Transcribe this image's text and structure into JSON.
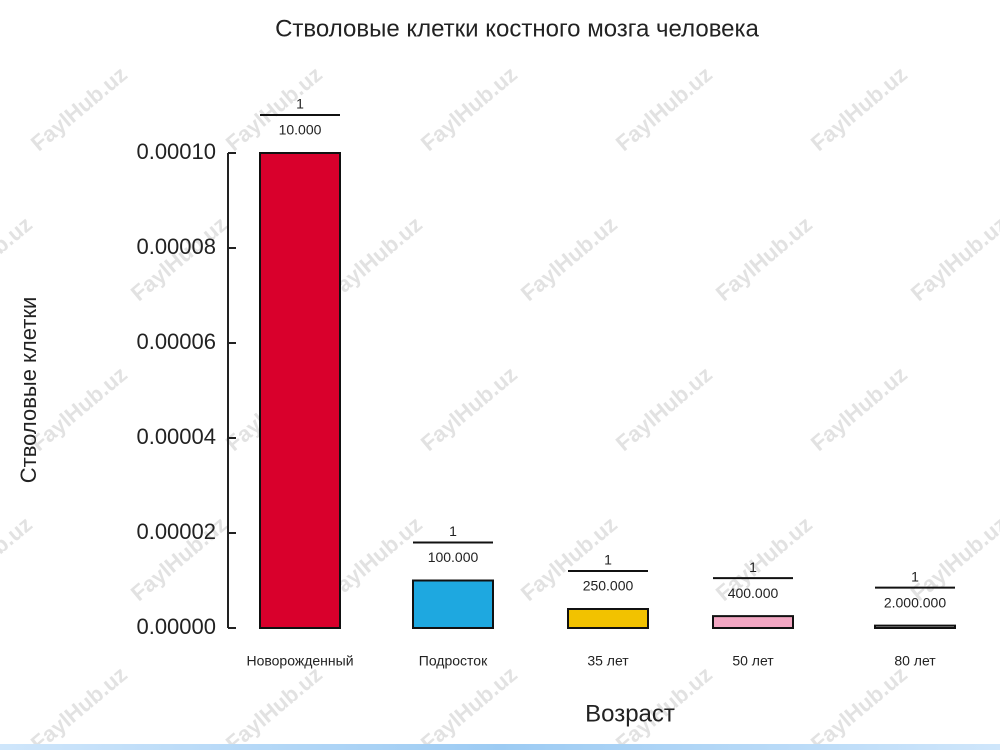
{
  "chart_data": {
    "type": "bar",
    "title": "Стволовые клетки костного мозга человека",
    "xlabel": "Возраст",
    "ylabel": "Стволовые клетки",
    "watermark": "FaylHub.uz",
    "categories": [
      "Новорожденный",
      "Подросток",
      "35 лет",
      "50 лет",
      "80 лет"
    ],
    "values": [
      0.0001,
      1e-05,
      4e-06,
      2.5e-06,
      5e-07
    ],
    "value_labels": [
      {
        "numerator": "1",
        "denominator": "10.000"
      },
      {
        "numerator": "1",
        "denominator": "100.000"
      },
      {
        "numerator": "1",
        "denominator": "250.000"
      },
      {
        "numerator": "1",
        "denominator": "400.000"
      },
      {
        "numerator": "1",
        "denominator": "2.000.000"
      }
    ],
    "colors": [
      "#d9002c",
      "#1ea8e0",
      "#f2c200",
      "#f3a7c3",
      "#e6e6e6"
    ],
    "ylim": [
      0,
      0.0001
    ],
    "yticks": [
      {
        "value": 0,
        "label": "0.00000"
      },
      {
        "value": 2e-05,
        "label": "0.00002"
      },
      {
        "value": 4e-05,
        "label": "0.00004"
      },
      {
        "value": 6e-05,
        "label": "0.00006"
      },
      {
        "value": 8e-05,
        "label": "0.00008"
      },
      {
        "value": 0.0001,
        "label": "0.00010"
      }
    ]
  }
}
